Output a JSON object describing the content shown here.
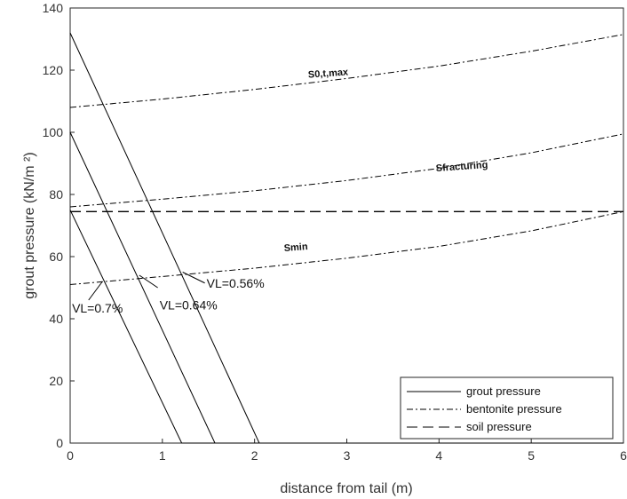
{
  "chart_data": {
    "type": "line",
    "xlabel": "distance from tail (m)",
    "ylabel": "grout pressure (kN/m ²)",
    "xlim": [
      0,
      6
    ],
    "ylim": [
      0,
      140
    ],
    "xticks": [
      "0",
      "1",
      "2",
      "3",
      "4",
      "5",
      "6"
    ],
    "yticks": [
      "0",
      "20",
      "40",
      "60",
      "80",
      "100",
      "120",
      "140"
    ],
    "grid": false,
    "legend_position": "bottom-right",
    "legend": [
      {
        "label": "grout pressure",
        "style": "solid"
      },
      {
        "label": "bentonite pressure",
        "style": "dashdot"
      },
      {
        "label": "soil pressure",
        "style": "dashed"
      }
    ],
    "series": [
      {
        "group": "grout pressure",
        "style": "solid",
        "x": [
          0,
          1.21,
          6
        ],
        "y": [
          75,
          0,
          0
        ]
      },
      {
        "group": "grout pressure",
        "style": "solid",
        "x": [
          0,
          1.57,
          6
        ],
        "y": [
          100,
          0,
          0
        ]
      },
      {
        "group": "grout pressure",
        "style": "solid",
        "x": [
          0,
          2.05,
          6
        ],
        "y": [
          132,
          0,
          0
        ]
      },
      {
        "group": "bentonite pressure",
        "style": "dashdot",
        "x": [
          0,
          1,
          2,
          3,
          4,
          5,
          6
        ],
        "y": [
          108,
          110.7,
          113.8,
          117.3,
          121.3,
          126.1,
          131.5
        ]
      },
      {
        "group": "bentonite pressure",
        "style": "dashdot",
        "x": [
          0,
          1,
          2,
          3,
          4,
          5,
          6
        ],
        "y": [
          76,
          78.5,
          81.2,
          84.5,
          88.4,
          93.4,
          99.5
        ]
      },
      {
        "group": "bentonite pressure",
        "style": "dashdot",
        "x": [
          0,
          1,
          2,
          3,
          4,
          5,
          6
        ],
        "y": [
          51,
          53.6,
          56.3,
          59.5,
          63.3,
          68.3,
          74.5
        ]
      },
      {
        "group": "soil pressure",
        "style": "dashed",
        "x": [
          0,
          6
        ],
        "y": [
          74.5,
          74.5
        ]
      }
    ],
    "curve_labels": [
      {
        "text": "S0,t,max",
        "x": 2.8,
        "y": 118
      },
      {
        "text": "Sfracturing",
        "x": 4.25,
        "y": 88
      },
      {
        "text": "Smin",
        "x": 2.45,
        "y": 62
      }
    ],
    "annotations": [
      {
        "text": "VL=0.7%",
        "x": 0.02,
        "y": 42,
        "pointer": [
          [
            0.35,
            52
          ],
          [
            0.2,
            46
          ]
        ]
      },
      {
        "text": "VL=0.64%",
        "x": 0.97,
        "y": 43,
        "pointer": [
          [
            0.75,
            54
          ],
          [
            0.95,
            50
          ]
        ]
      },
      {
        "text": "VL=0.56%",
        "x": 1.48,
        "y": 50,
        "pointer": [
          [
            1.22,
            55
          ],
          [
            1.46,
            51.5
          ]
        ]
      }
    ]
  }
}
